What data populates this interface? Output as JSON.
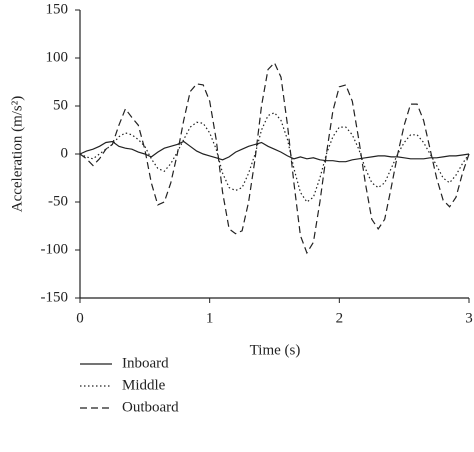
{
  "chart_data": {
    "type": "line",
    "xlabel": "Time (s)",
    "ylabel": "Acceleration (m/s²)",
    "x": [
      0,
      0.05,
      0.1,
      0.15,
      0.2,
      0.25,
      0.3,
      0.35,
      0.4,
      0.45,
      0.5,
      0.55,
      0.6,
      0.65,
      0.7,
      0.75,
      0.8,
      0.85,
      0.9,
      0.95,
      1,
      1.05,
      1.1,
      1.15,
      1.2,
      1.25,
      1.3,
      1.35,
      1.4,
      1.45,
      1.5,
      1.55,
      1.6,
      1.65,
      1.7,
      1.75,
      1.8,
      1.85,
      1.9,
      1.95,
      2,
      2.05,
      2.1,
      2.15,
      2.2,
      2.25,
      2.3,
      2.35,
      2.4,
      2.45,
      2.5,
      2.55,
      2.6,
      2.65,
      2.7,
      2.75,
      2.8,
      2.85,
      2.9,
      2.95,
      3
    ],
    "series": [
      {
        "name": "Inboard",
        "color": "#222",
        "dash": "solid",
        "values": [
          0,
          3,
          5,
          8,
          12,
          13,
          8,
          6,
          5,
          2,
          0,
          -3,
          2,
          6,
          8,
          10,
          13,
          8,
          3,
          0,
          -2,
          -4,
          -6,
          -3,
          2,
          5,
          8,
          10,
          12,
          8,
          5,
          2,
          -2,
          -5,
          -3,
          -5,
          -4,
          -6,
          -7,
          -7,
          -8,
          -8,
          -6,
          -5,
          -4,
          -3,
          -2,
          -2,
          -3,
          -3,
          -4,
          -5,
          -5,
          -5,
          -4,
          -4,
          -3,
          -2,
          -2,
          -1,
          0
        ]
      },
      {
        "name": "Middle",
        "color": "#222",
        "dash": "dotted",
        "values": [
          0,
          -3,
          -5,
          0,
          5,
          10,
          18,
          22,
          20,
          15,
          8,
          -5,
          -15,
          -18,
          -10,
          2,
          15,
          28,
          33,
          32,
          22,
          5,
          -20,
          -35,
          -38,
          -35,
          -20,
          0,
          25,
          40,
          43,
          35,
          15,
          -15,
          -40,
          -50,
          -45,
          -25,
          0,
          18,
          28,
          28,
          20,
          5,
          -15,
          -30,
          -35,
          -30,
          -15,
          0,
          12,
          20,
          20,
          12,
          0,
          -12,
          -25,
          -30,
          -22,
          -10,
          0
        ]
      },
      {
        "name": "Outboard",
        "color": "#222",
        "dash": "dashed",
        "values": [
          0,
          -5,
          -12,
          -5,
          5,
          10,
          30,
          47,
          38,
          30,
          5,
          -30,
          -53,
          -50,
          -30,
          0,
          35,
          65,
          73,
          72,
          55,
          15,
          -40,
          -78,
          -83,
          -80,
          -50,
          -5,
          50,
          88,
          95,
          80,
          30,
          -30,
          -85,
          -103,
          -92,
          -50,
          0,
          45,
          70,
          72,
          55,
          15,
          -30,
          -68,
          -78,
          -68,
          -35,
          0,
          30,
          52,
          52,
          35,
          5,
          -25,
          -48,
          -55,
          -45,
          -20,
          0
        ]
      }
    ],
    "xlim": [
      0,
      3
    ],
    "xticks": [
      0,
      1,
      2,
      3
    ],
    "ylim": [
      -150,
      150
    ],
    "yticks": [
      -150,
      -100,
      -50,
      0,
      50,
      100,
      150
    ],
    "grid": false
  }
}
